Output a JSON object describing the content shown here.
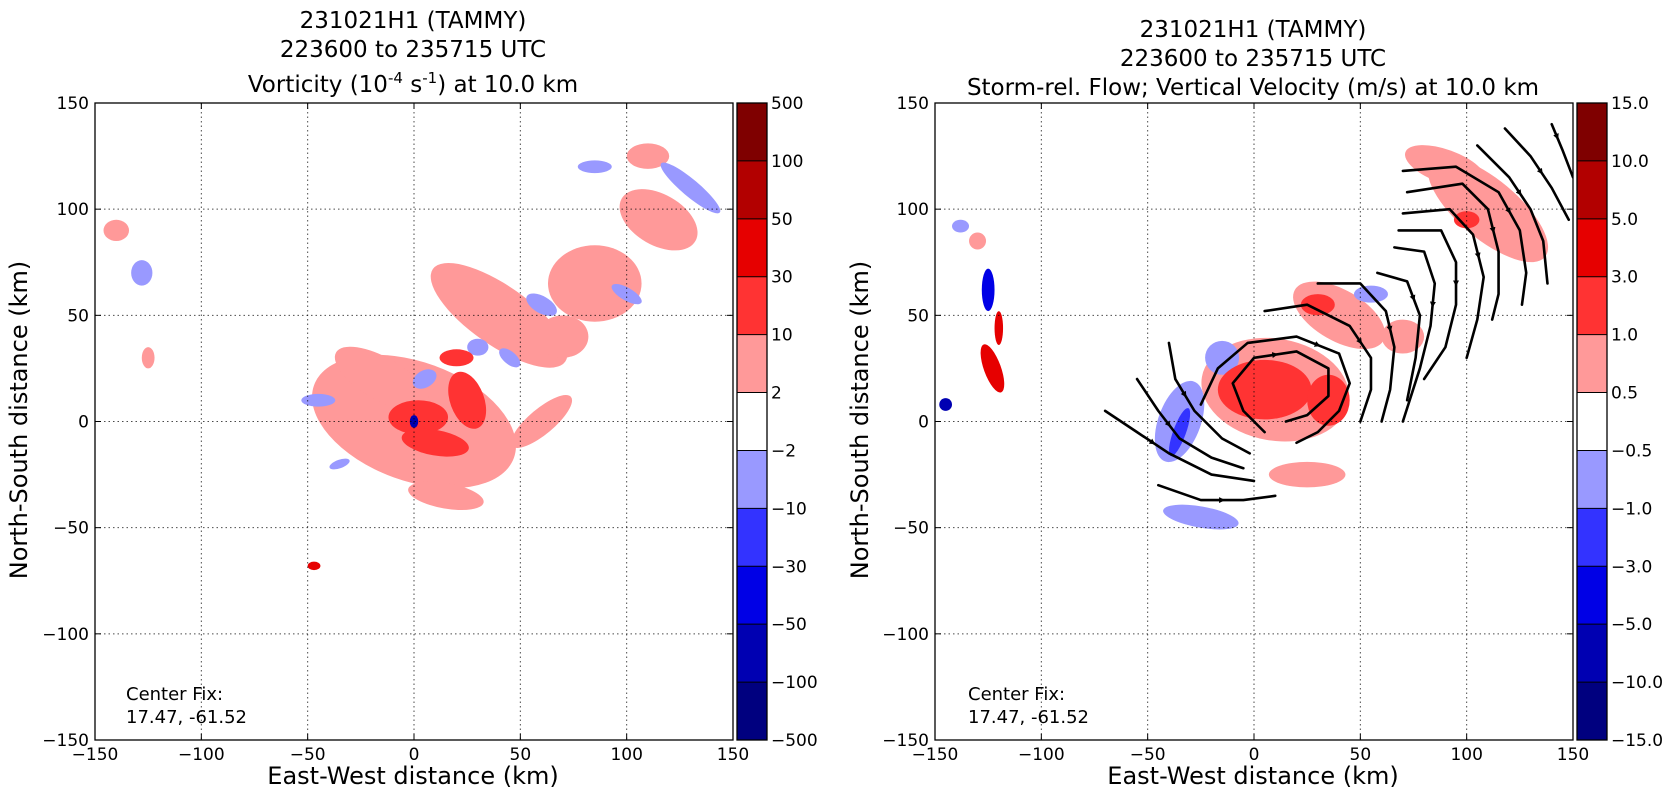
{
  "chart_data": [
    {
      "type": "heatmap",
      "title_lines": [
        "231021H1 (TAMMY)",
        "223600 to 235715 UTC"
      ],
      "title_field": "Vorticity (10",
      "title_exp1": "-4",
      "title_mid": " s",
      "title_exp2": "-1",
      "title_end": ") at 10.0 km",
      "xlabel": "East-West distance (km)",
      "ylabel": "North-South distance (km)",
      "xlim": [
        -150,
        150
      ],
      "ylim": [
        -150,
        150
      ],
      "xticks": [
        "−150",
        "−100",
        "−50",
        "0",
        "50",
        "100",
        "150"
      ],
      "yticks": [
        "−150",
        "−100",
        "−50",
        "0",
        "50",
        "100",
        "150"
      ],
      "grid": true,
      "colorbar_levels": [
        "500",
        "100",
        "50",
        "30",
        "10",
        "2",
        "−2",
        "−10",
        "−30",
        "−50",
        "−100",
        "−500"
      ],
      "center_fix_label": "Center Fix:",
      "center_fix_value": "17.47, -61.52",
      "features": [
        {
          "x": 2,
          "y": 2,
          "rx": 14,
          "ry": 8,
          "rot": 0,
          "level": 2
        },
        {
          "x": 25,
          "y": 10,
          "rx": 8,
          "ry": 14,
          "rot": 20,
          "level": 2
        },
        {
          "x": 10,
          "y": -10,
          "rx": 16,
          "ry": 6,
          "rot": -10,
          "level": 2
        },
        {
          "x": 0,
          "y": 0,
          "rx": 2,
          "ry": 3,
          "rot": 0,
          "level": -4
        },
        {
          "x": 0,
          "y": 0,
          "rx": 50,
          "ry": 28,
          "rot": -20,
          "level": 1
        },
        {
          "x": 40,
          "y": 50,
          "rx": 38,
          "ry": 14,
          "rot": -35,
          "level": 1
        },
        {
          "x": -15,
          "y": 20,
          "rx": 25,
          "ry": 10,
          "rot": -30,
          "level": 1
        },
        {
          "x": 85,
          "y": 65,
          "rx": 22,
          "ry": 18,
          "rot": 0,
          "level": 1
        },
        {
          "x": 115,
          "y": 95,
          "rx": 20,
          "ry": 12,
          "rot": -30,
          "level": 1
        },
        {
          "x": 110,
          "y": 125,
          "rx": 10,
          "ry": 6,
          "rot": 0,
          "level": 1
        },
        {
          "x": 70,
          "y": 40,
          "rx": 12,
          "ry": 10,
          "rot": 0,
          "level": 1
        },
        {
          "x": 15,
          "y": -35,
          "rx": 18,
          "ry": 6,
          "rot": -10,
          "level": 1
        },
        {
          "x": 60,
          "y": 0,
          "rx": 18,
          "ry": 6,
          "rot": 40,
          "level": 1
        },
        {
          "x": -140,
          "y": 90,
          "rx": 6,
          "ry": 5,
          "rot": 0,
          "level": 1
        },
        {
          "x": -125,
          "y": 30,
          "rx": 3,
          "ry": 5,
          "rot": 0,
          "level": 1
        },
        {
          "x": 20,
          "y": 30,
          "rx": 8,
          "ry": 4,
          "rot": 0,
          "level": 2
        },
        {
          "x": -45,
          "y": 10,
          "rx": 8,
          "ry": 3,
          "rot": 0,
          "level": -1
        },
        {
          "x": 60,
          "y": 55,
          "rx": 8,
          "ry": 4,
          "rot": -30,
          "level": -1
        },
        {
          "x": 130,
          "y": 110,
          "rx": 18,
          "ry": 4,
          "rot": -40,
          "level": -1
        },
        {
          "x": -128,
          "y": 70,
          "rx": 5,
          "ry": 6,
          "rot": 0,
          "level": -1
        },
        {
          "x": 5,
          "y": 20,
          "rx": 6,
          "ry": 4,
          "rot": 30,
          "level": -1
        },
        {
          "x": 30,
          "y": 35,
          "rx": 5,
          "ry": 4,
          "rot": 0,
          "level": -1
        },
        {
          "x": -35,
          "y": -20,
          "rx": 5,
          "ry": 2,
          "rot": 20,
          "level": -1
        },
        {
          "x": 100,
          "y": 60,
          "rx": 8,
          "ry": 3,
          "rot": -30,
          "level": -1
        },
        {
          "x": 85,
          "y": 120,
          "rx": 8,
          "ry": 3,
          "rot": 0,
          "level": -1
        },
        {
          "x": 45,
          "y": 30,
          "rx": 6,
          "ry": 3,
          "rot": -40,
          "level": -1
        },
        {
          "x": -47,
          "y": -68,
          "rx": 3,
          "ry": 2,
          "rot": 0,
          "level": 3
        }
      ],
      "streamlines": []
    },
    {
      "type": "heatmap",
      "title_lines": [
        "231021H1 (TAMMY)",
        "223600 to 235715 UTC"
      ],
      "title_field": "Storm-rel. Flow; Vertical Velocity (m/s) at 10.0 km",
      "title_exp1": "",
      "title_mid": "",
      "title_exp2": "",
      "title_end": "",
      "xlabel": "East-West distance (km)",
      "ylabel": "North-South distance (km)",
      "xlim": [
        -150,
        150
      ],
      "ylim": [
        -150,
        150
      ],
      "xticks": [
        "−150",
        "−100",
        "−50",
        "0",
        "50",
        "100",
        "150"
      ],
      "yticks": [
        "−150",
        "−100",
        "−50",
        "0",
        "50",
        "100",
        "150"
      ],
      "grid": true,
      "colorbar_levels": [
        "15.0",
        "10.0",
        "5.0",
        "3.0",
        "1.0",
        "0.5",
        "−0.5",
        "−1.0",
        "−3.0",
        "−5.0",
        "−10.0",
        "−15.0"
      ],
      "center_fix_label": "Center Fix:",
      "center_fix_value": "17.47, -61.52",
      "features": [
        {
          "x": 10,
          "y": 15,
          "rx": 35,
          "ry": 24,
          "rot": -10,
          "level": 1
        },
        {
          "x": 40,
          "y": 50,
          "rx": 24,
          "ry": 12,
          "rot": -30,
          "level": 1
        },
        {
          "x": 110,
          "y": 100,
          "rx": 35,
          "ry": 14,
          "rot": -40,
          "level": 1
        },
        {
          "x": 90,
          "y": 120,
          "rx": 20,
          "ry": 8,
          "rot": -20,
          "level": 1
        },
        {
          "x": 70,
          "y": 40,
          "rx": 10,
          "ry": 8,
          "rot": 0,
          "level": 1
        },
        {
          "x": 25,
          "y": -25,
          "rx": 18,
          "ry": 6,
          "rot": 0,
          "level": 1
        },
        {
          "x": -130,
          "y": 85,
          "rx": 4,
          "ry": 4,
          "rot": 0,
          "level": 1
        },
        {
          "x": 5,
          "y": 15,
          "rx": 22,
          "ry": 14,
          "rot": 0,
          "level": 2
        },
        {
          "x": 35,
          "y": 10,
          "rx": 10,
          "ry": 12,
          "rot": 0,
          "level": 2
        },
        {
          "x": 30,
          "y": 55,
          "rx": 8,
          "ry": 5,
          "rot": 0,
          "level": 2
        },
        {
          "x": 100,
          "y": 95,
          "rx": 6,
          "ry": 4,
          "rot": 0,
          "level": 2
        },
        {
          "x": -35,
          "y": 0,
          "rx": 10,
          "ry": 20,
          "rot": -20,
          "level": -1
        },
        {
          "x": -25,
          "y": -45,
          "rx": 18,
          "ry": 5,
          "rot": -10,
          "level": -1
        },
        {
          "x": -15,
          "y": 30,
          "rx": 8,
          "ry": 8,
          "rot": 0,
          "level": -1
        },
        {
          "x": 55,
          "y": 60,
          "rx": 8,
          "ry": 4,
          "rot": 0,
          "level": -1
        },
        {
          "x": -138,
          "y": 92,
          "rx": 4,
          "ry": 3,
          "rot": 0,
          "level": -1
        },
        {
          "x": -35,
          "y": -5,
          "rx": 3,
          "ry": 12,
          "rot": -20,
          "level": -2
        },
        {
          "x": -125,
          "y": 62,
          "rx": 3,
          "ry": 10,
          "rot": 0,
          "level": -3
        },
        {
          "x": -123,
          "y": 25,
          "rx": 4,
          "ry": 12,
          "rot": 20,
          "level": 3
        },
        {
          "x": -120,
          "y": 44,
          "rx": 2,
          "ry": 8,
          "rot": 0,
          "level": 3
        },
        {
          "x": -145,
          "y": 8,
          "rx": 3,
          "ry": 3,
          "rot": 0,
          "level": -4
        }
      ],
      "streamlines": [
        [
          [
            -70,
            5
          ],
          [
            -55,
            -5
          ],
          [
            -40,
            -15
          ],
          [
            -20,
            -25
          ],
          [
            0,
            -28
          ]
        ],
        [
          [
            -45,
            -30
          ],
          [
            -25,
            -37
          ],
          [
            -5,
            -37
          ],
          [
            10,
            -35
          ]
        ],
        [
          [
            -55,
            20
          ],
          [
            -45,
            5
          ],
          [
            -35,
            -8
          ],
          [
            -20,
            -17
          ],
          [
            -5,
            -22
          ]
        ],
        [
          [
            -40,
            37
          ],
          [
            -37,
            20
          ],
          [
            -28,
            5
          ],
          [
            -15,
            -8
          ],
          [
            -2,
            -15
          ]
        ],
        [
          [
            5,
            -5
          ],
          [
            -5,
            5
          ],
          [
            -10,
            18
          ],
          [
            0,
            30
          ],
          [
            20,
            33
          ],
          [
            35,
            25
          ],
          [
            35,
            12
          ],
          [
            25,
            3
          ],
          [
            15,
            0
          ]
        ],
        [
          [
            -25,
            8
          ],
          [
            -17,
            25
          ],
          [
            -3,
            37
          ],
          [
            20,
            40
          ],
          [
            40,
            32
          ],
          [
            45,
            18
          ],
          [
            40,
            5
          ],
          [
            30,
            -5
          ],
          [
            20,
            -10
          ]
        ],
        [
          [
            5,
            52
          ],
          [
            25,
            55
          ],
          [
            45,
            45
          ],
          [
            55,
            30
          ],
          [
            55,
            15
          ],
          [
            50,
            0
          ]
        ],
        [
          [
            30,
            65
          ],
          [
            50,
            65
          ],
          [
            62,
            52
          ],
          [
            66,
            35
          ],
          [
            64,
            15
          ],
          [
            60,
            0
          ]
        ],
        [
          [
            58,
            70
          ],
          [
            72,
            66
          ],
          [
            78,
            50
          ],
          [
            76,
            30
          ],
          [
            72,
            10
          ]
        ],
        [
          [
            66,
            82
          ],
          [
            80,
            80
          ],
          [
            85,
            65
          ],
          [
            83,
            45
          ],
          [
            78,
            25
          ],
          [
            70,
            0
          ]
        ],
        [
          [
            68,
            90
          ],
          [
            88,
            90
          ],
          [
            95,
            75
          ],
          [
            95,
            55
          ],
          [
            90,
            35
          ],
          [
            80,
            20
          ]
        ],
        [
          [
            70,
            98
          ],
          [
            92,
            100
          ],
          [
            103,
            88
          ],
          [
            108,
            68
          ],
          [
            105,
            48
          ],
          [
            100,
            30
          ]
        ],
        [
          [
            72,
            108
          ],
          [
            98,
            112
          ],
          [
            110,
            100
          ],
          [
            115,
            80
          ],
          [
            115,
            60
          ],
          [
            112,
            48
          ]
        ],
        [
          [
            70,
            118
          ],
          [
            95,
            120
          ],
          [
            115,
            108
          ],
          [
            125,
            90
          ],
          [
            128,
            70
          ],
          [
            126,
            55
          ]
        ],
        [
          [
            105,
            130
          ],
          [
            120,
            115
          ],
          [
            130,
            100
          ],
          [
            136,
            85
          ],
          [
            138,
            65
          ]
        ],
        [
          [
            118,
            138
          ],
          [
            130,
            125
          ],
          [
            140,
            110
          ],
          [
            148,
            95
          ]
        ],
        [
          [
            140,
            140
          ],
          [
            145,
            128
          ],
          [
            150,
            115
          ]
        ]
      ]
    }
  ],
  "colors": {
    "colorbar": [
      "#7f0000",
      "#b20000",
      "#e60000",
      "#ff3333",
      "#ff9999",
      "#ffffff",
      "#9999ff",
      "#3333ff",
      "#0000e6",
      "#0000b2",
      "#00007f"
    ],
    "level_map": {
      "4": "#b20000",
      "3": "#e60000",
      "2": "#ff3333",
      "1": "#ff9999",
      "-1": "#9999ff",
      "-2": "#3333ff",
      "-3": "#0000e6",
      "-4": "#0000b2"
    }
  }
}
